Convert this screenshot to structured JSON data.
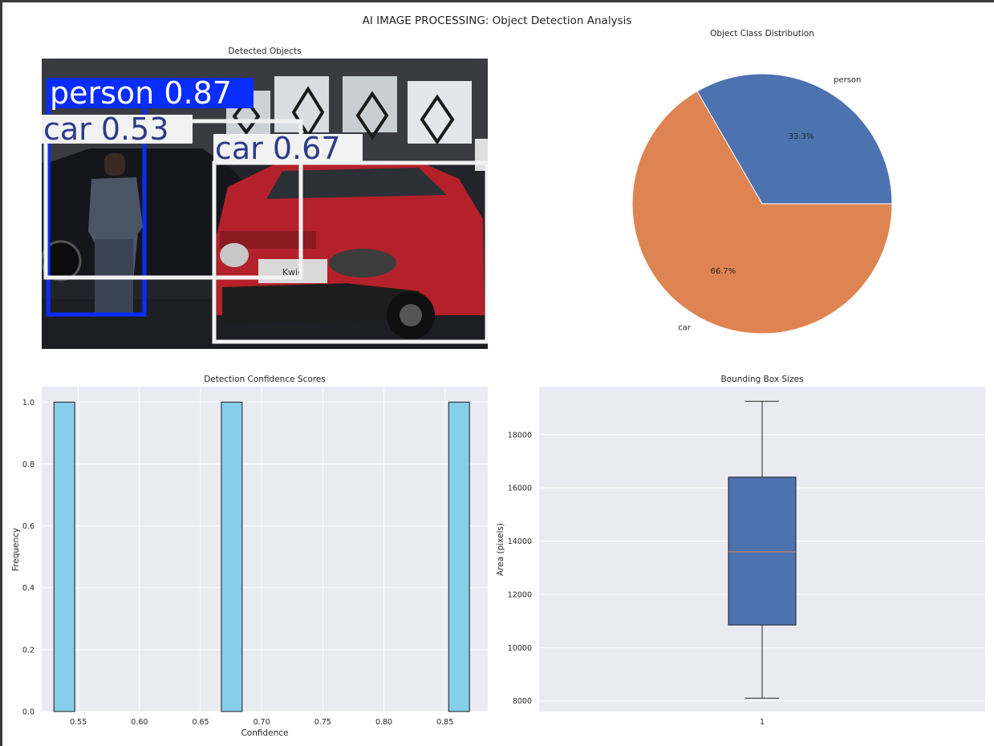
{
  "figure": {
    "suptitle": "AI IMAGE PROCESSING: Object Detection Analysis"
  },
  "colors": {
    "person_box": "#0a2dff",
    "car_box": "#f2f2f2",
    "pie_person": "#4c72b0",
    "pie_car": "#dd8452",
    "hist_bar": "#87ceeb",
    "box_fill": "#4c72b0",
    "median_line": "#dd8452",
    "axes_bg": "#eaeaf2"
  },
  "chart_data": [
    {
      "type": "image",
      "title": "Detected Objects",
      "detections": [
        {
          "label": "person 0.87",
          "class": "person",
          "confidence": 0.87
        },
        {
          "label": "car 0.53",
          "class": "car",
          "confidence": 0.53
        },
        {
          "label": "car 0.67",
          "class": "car",
          "confidence": 0.67
        }
      ],
      "plate_text": "Kwid"
    },
    {
      "type": "pie",
      "title": "Object Class Distribution",
      "labels": [
        "person",
        "car"
      ],
      "values": [
        1,
        2
      ],
      "pct_labels": [
        "33.3%",
        "66.7%"
      ]
    },
    {
      "type": "bar",
      "title": "Detection Confidence Scores",
      "xlabel": "Confidence",
      "ylabel": "Frequency",
      "xlim": [
        0.52,
        0.885
      ],
      "ylim": [
        0,
        1.05
      ],
      "xticks": [
        "0.55",
        "0.60",
        "0.65",
        "0.70",
        "0.75",
        "0.80",
        "0.85"
      ],
      "yticks": [
        "0.0",
        "0.2",
        "0.4",
        "0.6",
        "0.8",
        "1.0"
      ],
      "bins": [
        {
          "x0": 0.53,
          "x1": 0.547,
          "count": 1
        },
        {
          "x0": 0.667,
          "x1": 0.684,
          "count": 1
        },
        {
          "x0": 0.853,
          "x1": 0.87,
          "count": 1
        }
      ]
    },
    {
      "type": "box",
      "title": "Bounding Box Sizes",
      "ylabel": "Area (pixels)",
      "xticks": [
        "1"
      ],
      "ylim": [
        7600,
        19800
      ],
      "yticks": [
        "8000",
        "10000",
        "12000",
        "14000",
        "16000",
        "18000"
      ],
      "box": {
        "whisker_low": 8100,
        "q1": 10850,
        "median": 13600,
        "q3": 16400,
        "whisker_high": 19250
      }
    }
  ]
}
